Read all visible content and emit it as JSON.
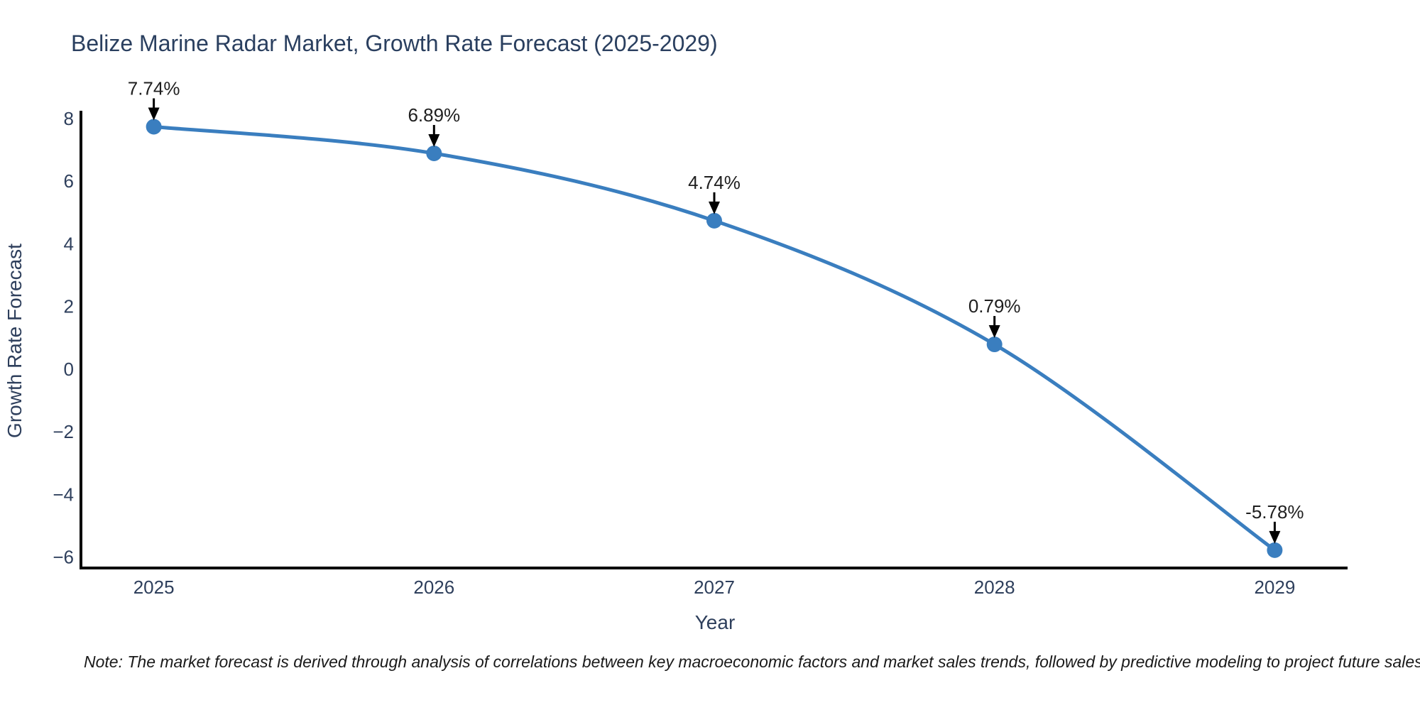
{
  "title": "Belize Marine Radar Market, Growth Rate Forecast (2025-2029)",
  "note": "Note: The market forecast is derived through analysis of correlations between key macroeconomic factors and market sales trends, followed by predictive modeling to project future sales",
  "chart_data": {
    "type": "line",
    "x": [
      2025,
      2026,
      2027,
      2028,
      2029
    ],
    "series": [
      {
        "name": "Growth Rate Forecast",
        "values": [
          7.74,
          6.89,
          4.74,
          0.79,
          -5.78
        ]
      }
    ],
    "point_labels": [
      "7.74%",
      "6.89%",
      "4.74%",
      "0.79%",
      "-5.78%"
    ],
    "xlabel": "Year",
    "ylabel": "Growth Rate Forecast",
    "xticks": [
      2025,
      2026,
      2027,
      2028,
      2029
    ],
    "yticks": [
      8,
      6,
      4,
      2,
      0,
      -2,
      -4,
      -6
    ],
    "xlim": [
      2024.74,
      2029.26
    ],
    "ylim": [
      -6.35,
      8.25
    ],
    "grid": false,
    "legend": "none",
    "smooth_line": true,
    "colors": {
      "line": "#3a7ebf",
      "marker": "#3a7ebf",
      "annotation_arrow": "#000000",
      "annotation_text": "#1f1f1f",
      "axis": "#000000",
      "tick_text": "#2e3f5c",
      "title_text": "#2a3f5f",
      "note_text": "#1a1a1a"
    }
  }
}
